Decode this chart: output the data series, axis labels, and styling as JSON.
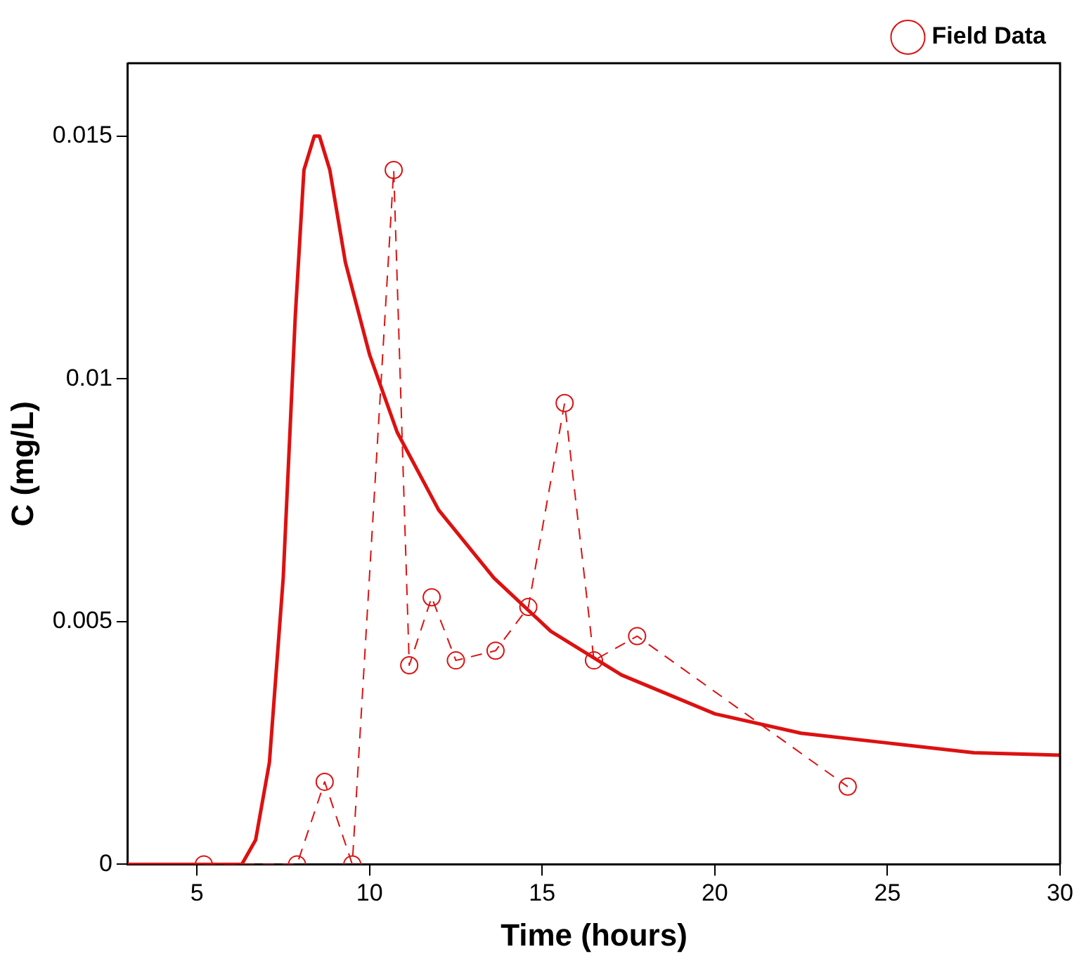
{
  "chart_data": {
    "type": "line",
    "xlabel": "Time (hours)",
    "ylabel": "C (mg/L)",
    "xlim": [
      3,
      30
    ],
    "xticks": [
      5,
      10,
      15,
      20,
      25,
      30
    ],
    "ylim": [
      0,
      0.0165
    ],
    "yticks": [
      0,
      0.005,
      0.01,
      0.015
    ],
    "grid": false,
    "legend": "top right",
    "series": [
      {
        "color": "#dd1111",
        "marker": "none",
        "line_style": "solid",
        "x": [
          3,
          5,
          6.3,
          6.7,
          7.1,
          7.5,
          7.85,
          8.1,
          8.4,
          8.55,
          8.85,
          9.3,
          10,
          10.8,
          12,
          13.6,
          15.25,
          17.3,
          20,
          22.5,
          25,
          27.5,
          30
        ],
        "values": [
          0,
          0,
          0,
          0.0005,
          0.0021,
          0.0059,
          0.0113,
          0.0143,
          0.015,
          0.015,
          0.0143,
          0.0124,
          0.0105,
          0.0089,
          0.0073,
          0.0059,
          0.0048,
          0.0039,
          0.0031,
          0.0027,
          0.0025,
          0.0023,
          0.00225
        ]
      },
      {
        "name": "Field Data",
        "color": "#dd1111",
        "marker": "circle",
        "line_style": "dashed",
        "x": [
          5.2,
          7.9,
          8.7,
          9.5,
          10.7,
          11.15,
          11.8,
          12.5,
          13.65,
          14.6,
          15.65,
          16.5,
          17.75,
          23.85
        ],
        "values": [
          0,
          0,
          0.0017,
          0,
          0.0143,
          0.0041,
          0.0055,
          0.0042,
          0.0044,
          0.0053,
          0.0095,
          0.0042,
          0.0047,
          0.0016
        ]
      }
    ]
  }
}
